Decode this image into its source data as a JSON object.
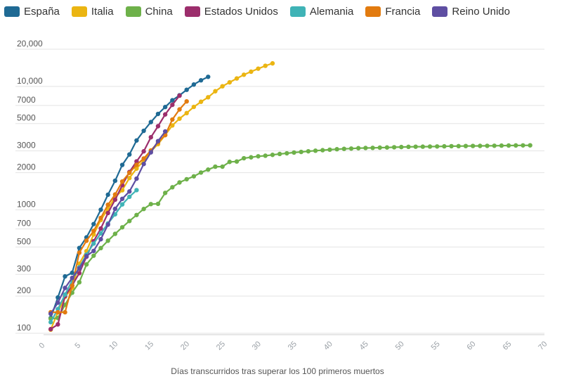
{
  "chart_data": {
    "type": "line",
    "xlabel": "Días transcurridos tras superar los 100 primeros muertos",
    "ylabel": "",
    "yscale": "log",
    "xlim": [
      0,
      70
    ],
    "ylim": [
      100,
      20000
    ],
    "x_ticks": [
      0,
      5,
      10,
      15,
      20,
      25,
      30,
      35,
      40,
      45,
      50,
      55,
      60,
      65,
      70
    ],
    "y_ticks": [
      {
        "value": 100,
        "label": "100"
      },
      {
        "value": 200,
        "label": "200"
      },
      {
        "value": 300,
        "label": "300"
      },
      {
        "value": 500,
        "label": "500"
      },
      {
        "value": 700,
        "label": "700"
      },
      {
        "value": 1000,
        "label": "1000"
      },
      {
        "value": 2000,
        "label": "2000"
      },
      {
        "value": 3000,
        "label": "3000"
      },
      {
        "value": 5000,
        "label": "5000"
      },
      {
        "value": 7000,
        "label": "7000"
      },
      {
        "value": 10000,
        "label": "10,000"
      },
      {
        "value": 20000,
        "label": "20,000"
      }
    ],
    "grid": true,
    "legend_position": "top-left",
    "series": [
      {
        "name": "España",
        "color": "#1f6a94",
        "values": [
          [
            1,
            133
          ],
          [
            2,
            195
          ],
          [
            3,
            289
          ],
          [
            4,
            309
          ],
          [
            5,
            491
          ],
          [
            6,
            598
          ],
          [
            7,
            767
          ],
          [
            8,
            1002
          ],
          [
            9,
            1326
          ],
          [
            10,
            1720
          ],
          [
            11,
            2311
          ],
          [
            12,
            2808
          ],
          [
            13,
            3647
          ],
          [
            14,
            4365
          ],
          [
            15,
            5138
          ],
          [
            16,
            5982
          ],
          [
            17,
            6803
          ],
          [
            18,
            7716
          ],
          [
            19,
            8464
          ],
          [
            20,
            9387
          ],
          [
            21,
            10348
          ],
          [
            22,
            11198
          ],
          [
            23,
            11947
          ]
        ]
      },
      {
        "name": "Italia",
        "color": "#ebb512",
        "values": [
          [
            1,
            107
          ],
          [
            2,
            148
          ],
          [
            3,
            197
          ],
          [
            4,
            233
          ],
          [
            5,
            366
          ],
          [
            6,
            463
          ],
          [
            7,
            631
          ],
          [
            8,
            827
          ],
          [
            9,
            1016
          ],
          [
            10,
            1266
          ],
          [
            11,
            1441
          ],
          [
            12,
            1809
          ],
          [
            13,
            2158
          ],
          [
            14,
            2503
          ],
          [
            15,
            2978
          ],
          [
            16,
            3405
          ],
          [
            17,
            4032
          ],
          [
            18,
            4825
          ],
          [
            19,
            5476
          ],
          [
            20,
            6077
          ],
          [
            21,
            6820
          ],
          [
            22,
            7503
          ],
          [
            23,
            8165
          ],
          [
            24,
            9134
          ],
          [
            25,
            10023
          ],
          [
            26,
            10779
          ],
          [
            27,
            11591
          ],
          [
            28,
            12428
          ],
          [
            29,
            13155
          ],
          [
            30,
            13915
          ],
          [
            31,
            14681
          ],
          [
            32,
            15362
          ]
        ]
      },
      {
        "name": "China",
        "color": "#6eb14a",
        "values": [
          [
            1,
            131
          ],
          [
            2,
            133
          ],
          [
            3,
            170
          ],
          [
            4,
            213
          ],
          [
            5,
            259
          ],
          [
            6,
            361
          ],
          [
            7,
            425
          ],
          [
            8,
            490
          ],
          [
            9,
            562
          ],
          [
            10,
            639
          ],
          [
            11,
            722
          ],
          [
            12,
            812
          ],
          [
            13,
            908
          ],
          [
            14,
            1016
          ],
          [
            15,
            1113
          ],
          [
            16,
            1118
          ],
          [
            17,
            1371
          ],
          [
            18,
            1523
          ],
          [
            19,
            1666
          ],
          [
            20,
            1770
          ],
          [
            21,
            1868
          ],
          [
            22,
            2004
          ],
          [
            23,
            2118
          ],
          [
            24,
            2236
          ],
          [
            25,
            2237
          ],
          [
            26,
            2445
          ],
          [
            27,
            2462
          ],
          [
            28,
            2618
          ],
          [
            29,
            2663
          ],
          [
            30,
            2715
          ],
          [
            31,
            2744
          ],
          [
            32,
            2788
          ],
          [
            33,
            2835
          ],
          [
            34,
            2870
          ],
          [
            35,
            2912
          ],
          [
            36,
            2945
          ],
          [
            37,
            2981
          ],
          [
            38,
            3013
          ],
          [
            39,
            3042
          ],
          [
            40,
            3070
          ],
          [
            41,
            3097
          ],
          [
            42,
            3119
          ],
          [
            43,
            3136
          ],
          [
            44,
            3158
          ],
          [
            45,
            3169
          ],
          [
            46,
            3176
          ],
          [
            47,
            3189
          ],
          [
            48,
            3199
          ],
          [
            49,
            3213
          ],
          [
            50,
            3226
          ],
          [
            51,
            3237
          ],
          [
            52,
            3245
          ],
          [
            53,
            3249
          ],
          [
            54,
            3253
          ],
          [
            55,
            3261
          ],
          [
            56,
            3270
          ],
          [
            57,
            3277
          ],
          [
            58,
            3281
          ],
          [
            59,
            3287
          ],
          [
            60,
            3292
          ],
          [
            61,
            3295
          ],
          [
            62,
            3300
          ],
          [
            63,
            3305
          ],
          [
            64,
            3312
          ],
          [
            65,
            3318
          ],
          [
            66,
            3322
          ],
          [
            67,
            3326
          ],
          [
            68,
            3330
          ]
        ]
      },
      {
        "name": "Estados Unidos",
        "color": "#9c2e6c",
        "values": [
          [
            1,
            108
          ],
          [
            2,
            118
          ],
          [
            3,
            200
          ],
          [
            4,
            244
          ],
          [
            5,
            307
          ],
          [
            6,
            417
          ],
          [
            7,
            557
          ],
          [
            8,
            706
          ],
          [
            9,
            942
          ],
          [
            10,
            1209
          ],
          [
            11,
            1581
          ],
          [
            12,
            2026
          ],
          [
            13,
            2467
          ],
          [
            14,
            2978
          ],
          [
            15,
            3873
          ],
          [
            16,
            4757
          ],
          [
            17,
            5926
          ],
          [
            18,
            7087
          ],
          [
            19,
            8407
          ]
        ]
      },
      {
        "name": "Alemania",
        "color": "#3fb3b6",
        "values": [
          [
            1,
            123
          ],
          [
            2,
            157
          ],
          [
            3,
            206
          ],
          [
            4,
            267
          ],
          [
            5,
            342
          ],
          [
            6,
            433
          ],
          [
            7,
            533
          ],
          [
            8,
            645
          ],
          [
            9,
            775
          ],
          [
            10,
            920
          ],
          [
            11,
            1107
          ],
          [
            12,
            1275
          ],
          [
            13,
            1444
          ]
        ]
      },
      {
        "name": "Francia",
        "color": "#e27b0f",
        "values": [
          [
            1,
            148
          ],
          [
            2,
            148
          ],
          [
            3,
            148
          ],
          [
            4,
            243
          ],
          [
            5,
            450
          ],
          [
            6,
            562
          ],
          [
            7,
            674
          ],
          [
            8,
            860
          ],
          [
            9,
            1100
          ],
          [
            10,
            1331
          ],
          [
            11,
            1696
          ],
          [
            12,
            1995
          ],
          [
            13,
            2314
          ],
          [
            14,
            2606
          ],
          [
            15,
            3024
          ],
          [
            16,
            3523
          ],
          [
            17,
            4032
          ],
          [
            18,
            5387
          ],
          [
            19,
            6507
          ],
          [
            20,
            7560
          ]
        ]
      },
      {
        "name": "Reino Unido",
        "color": "#5e4ea2",
        "values": [
          [
            1,
            144
          ],
          [
            2,
            177
          ],
          [
            3,
            233
          ],
          [
            4,
            281
          ],
          [
            5,
            335
          ],
          [
            6,
            422
          ],
          [
            7,
            465
          ],
          [
            8,
            578
          ],
          [
            9,
            759
          ],
          [
            10,
            1019
          ],
          [
            11,
            1228
          ],
          [
            12,
            1408
          ],
          [
            13,
            1789
          ],
          [
            14,
            2352
          ],
          [
            15,
            2921
          ],
          [
            16,
            3605
          ],
          [
            17,
            4313
          ]
        ]
      }
    ]
  }
}
